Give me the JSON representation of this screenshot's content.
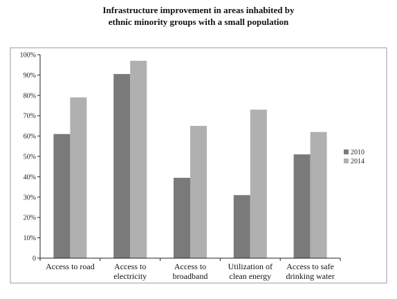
{
  "chart_data": {
    "type": "bar",
    "title_lines": [
      "Infrastructure improvement in areas inhabited by",
      "ethnic minority groups with a small population"
    ],
    "categories": [
      [
        "Access to road"
      ],
      [
        "Access to",
        "electricity"
      ],
      [
        "Access to",
        "broadband"
      ],
      [
        "Utilization of",
        "clean energy"
      ],
      [
        "Access to safe",
        "drinking water"
      ]
    ],
    "series": [
      {
        "name": "2010",
        "color": "#7a7a7a",
        "values": [
          0.61,
          0.905,
          0.395,
          0.31,
          0.51
        ]
      },
      {
        "name": "2014",
        "color": "#b0b0b0",
        "values": [
          0.79,
          0.97,
          0.65,
          0.73,
          0.62
        ]
      }
    ],
    "y_ticks": [
      "0",
      "10%",
      "20%",
      "30%",
      "40%",
      "50%",
      "60%",
      "70%",
      "80%",
      "90%",
      "100%"
    ],
    "ylim": [
      0,
      1
    ],
    "grid": false,
    "legend_position": "right"
  }
}
